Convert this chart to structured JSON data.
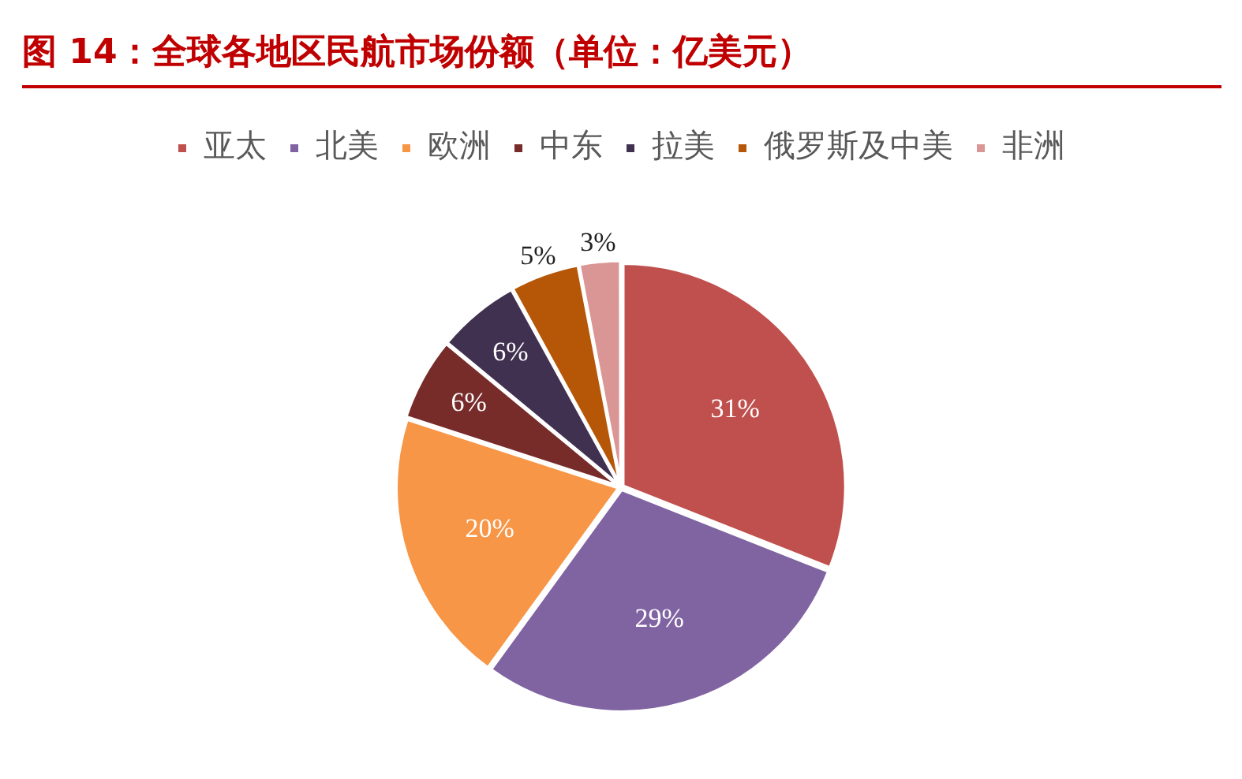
{
  "chart_data": {
    "type": "pie",
    "title": "图 14：全球各地区民航市场份额（单位：亿美元）",
    "categories": [
      "亚太",
      "北美",
      "欧洲",
      "中东",
      "拉美",
      "俄罗斯及中美",
      "非洲"
    ],
    "values": [
      31,
      29,
      20,
      6,
      6,
      5,
      3
    ],
    "colors": [
      "#c0504d",
      "#8064a2",
      "#f79646",
      "#772c2a",
      "#403151",
      "#b65708",
      "#d99694"
    ],
    "value_labels": [
      "31%",
      "29%",
      "20%",
      "6%",
      "6%",
      "5%",
      "3%"
    ],
    "legend": "top"
  }
}
